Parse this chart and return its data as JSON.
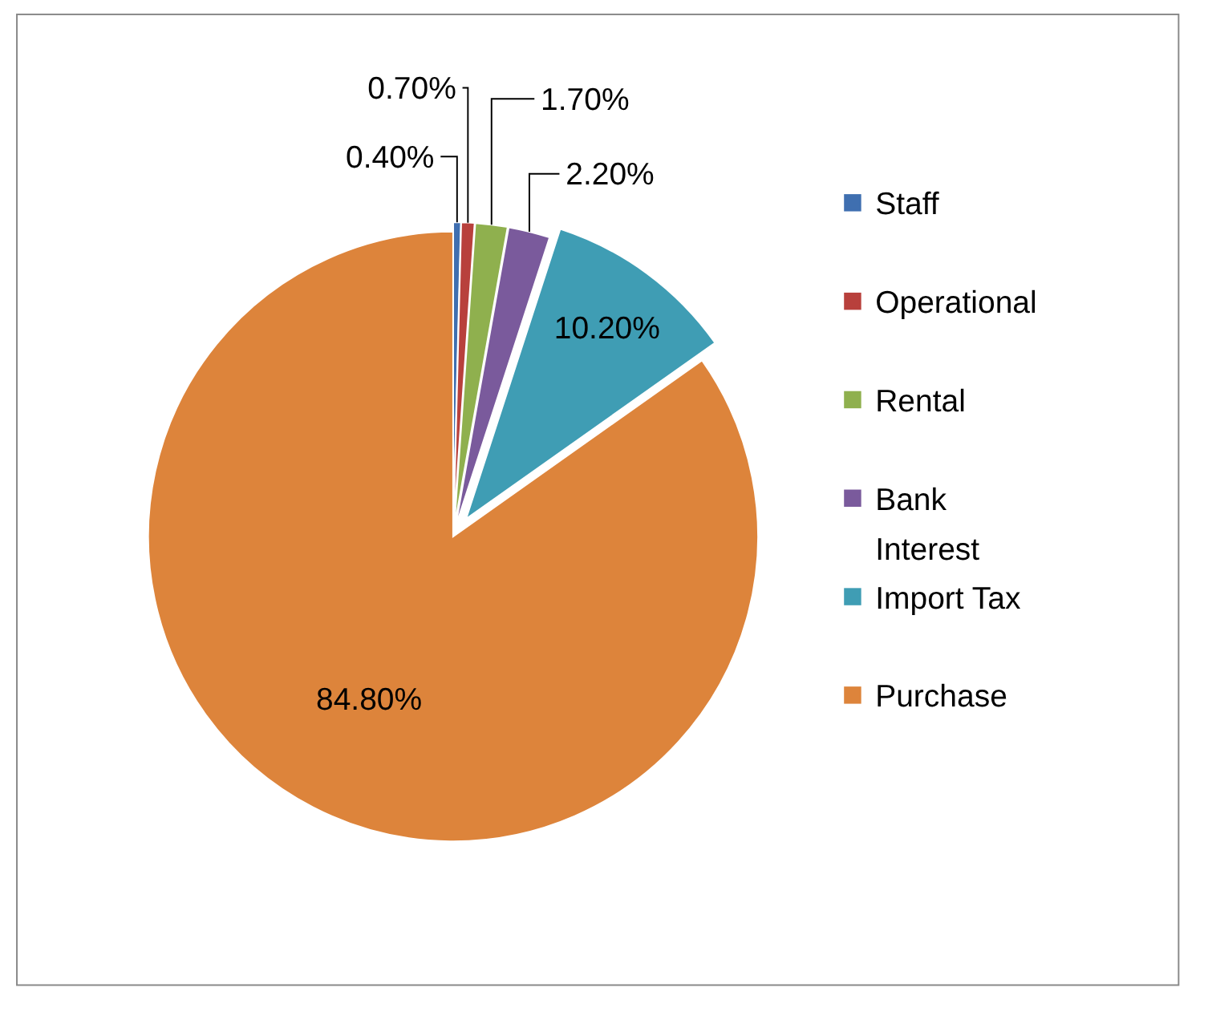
{
  "chart_data": {
    "type": "pie",
    "categories": [
      "Staff",
      "Operational",
      "Rental",
      "Bank Interest",
      "Import Tax",
      "Purchase"
    ],
    "values": [
      0.4,
      0.7,
      1.7,
      2.2,
      10.2,
      84.8
    ],
    "colors": [
      "#3f6fb0",
      "#b8403c",
      "#8fb04e",
      "#7a5a9c",
      "#3f9db4",
      "#dd843b"
    ],
    "value_labels": [
      "0.40%",
      "0.70%",
      "1.70%",
      "2.20%",
      "10.20%",
      "84.80%"
    ],
    "legend": "right"
  }
}
